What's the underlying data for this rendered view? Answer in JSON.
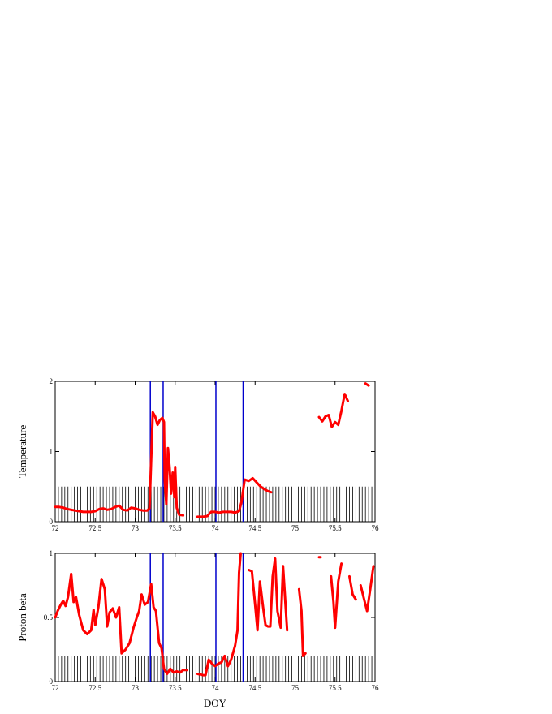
{
  "chart_data": [
    {
      "type": "line",
      "ylabel": "Temperature",
      "xlabel": "",
      "xlim": [
        72,
        76
      ],
      "ylim": [
        0,
        2
      ],
      "xticks": [
        "72",
        "72.5",
        "73",
        "73.5",
        "74",
        "74.5",
        "75",
        "75.5",
        "76"
      ],
      "yticks": [
        "0",
        "1",
        "2"
      ],
      "grid": false,
      "line_color": "#ff0000",
      "marker_color": "#0000cc",
      "vertical_markers": [
        73.19,
        73.35,
        74.01,
        74.35
      ],
      "hatch": {
        "y_top": 0.5,
        "x_start": 72,
        "x_end": 76,
        "spacing": 0.04
      },
      "segments": [
        [
          [
            72.0,
            0.21
          ],
          [
            72.05,
            0.21
          ],
          [
            72.1,
            0.2
          ],
          [
            72.15,
            0.18
          ],
          [
            72.2,
            0.17
          ],
          [
            72.25,
            0.16
          ],
          [
            72.3,
            0.15
          ],
          [
            72.35,
            0.14
          ],
          [
            72.4,
            0.14
          ],
          [
            72.45,
            0.14
          ],
          [
            72.5,
            0.15
          ],
          [
            72.55,
            0.18
          ],
          [
            72.6,
            0.19
          ],
          [
            72.65,
            0.17
          ],
          [
            72.7,
            0.18
          ],
          [
            72.75,
            0.21
          ],
          [
            72.8,
            0.23
          ],
          [
            72.85,
            0.17
          ],
          [
            72.9,
            0.16
          ],
          [
            72.95,
            0.2
          ],
          [
            73.0,
            0.19
          ],
          [
            73.05,
            0.17
          ],
          [
            73.1,
            0.16
          ],
          [
            73.15,
            0.16
          ],
          [
            73.18,
            0.19
          ],
          [
            73.22,
            1.56
          ],
          [
            73.25,
            1.5
          ],
          [
            73.28,
            1.38
          ],
          [
            73.31,
            1.45
          ],
          [
            73.34,
            1.48
          ],
          [
            73.36,
            1.42
          ],
          [
            73.37,
            0.6
          ],
          [
            73.39,
            0.25
          ],
          [
            73.41,
            1.05
          ],
          [
            73.43,
            0.78
          ],
          [
            73.45,
            0.4
          ],
          [
            73.47,
            0.7
          ],
          [
            73.49,
            0.35
          ],
          [
            73.5,
            0.78
          ],
          [
            73.52,
            0.2
          ],
          [
            73.55,
            0.1
          ],
          [
            73.6,
            0.09
          ]
        ],
        [
          [
            73.78,
            0.07
          ],
          [
            73.85,
            0.07
          ],
          [
            73.9,
            0.08
          ],
          [
            73.95,
            0.14
          ],
          [
            74.0,
            0.14
          ],
          [
            74.05,
            0.13
          ],
          [
            74.1,
            0.14
          ],
          [
            74.2,
            0.14
          ],
          [
            74.25,
            0.13
          ],
          [
            74.3,
            0.15
          ],
          [
            74.33,
            0.28
          ],
          [
            74.37,
            0.6
          ],
          [
            74.42,
            0.58
          ],
          [
            74.47,
            0.62
          ],
          [
            74.52,
            0.56
          ],
          [
            74.57,
            0.5
          ],
          [
            74.62,
            0.46
          ],
          [
            74.67,
            0.43
          ],
          [
            74.7,
            0.42
          ]
        ],
        [
          [
            75.3,
            1.49
          ],
          [
            75.34,
            1.43
          ],
          [
            75.38,
            1.5
          ],
          [
            75.42,
            1.52
          ],
          [
            75.46,
            1.35
          ],
          [
            75.5,
            1.42
          ],
          [
            75.54,
            1.38
          ],
          [
            75.58,
            1.58
          ],
          [
            75.62,
            1.82
          ],
          [
            75.66,
            1.72
          ]
        ],
        [
          [
            75.88,
            1.97
          ],
          [
            75.92,
            1.94
          ]
        ]
      ]
    },
    {
      "type": "line",
      "ylabel": "Proton beta",
      "xlabel": "DOY",
      "xlim": [
        72,
        76
      ],
      "ylim": [
        0,
        1
      ],
      "xticks": [
        "72",
        "72.5",
        "73",
        "73.5",
        "74",
        "74.5",
        "75",
        "75.5",
        "76"
      ],
      "yticks": [
        "0",
        "0.5",
        "1"
      ],
      "grid": false,
      "line_color": "#ff0000",
      "marker_color": "#0000cc",
      "vertical_markers": [
        73.19,
        73.35,
        74.01,
        74.35
      ],
      "hatch": {
        "y_top": 0.2,
        "x_start": 72,
        "x_end": 76,
        "spacing": 0.04
      },
      "segments": [
        [
          [
            72.0,
            0.5
          ],
          [
            72.03,
            0.55
          ],
          [
            72.07,
            0.6
          ],
          [
            72.1,
            0.63
          ],
          [
            72.13,
            0.59
          ],
          [
            72.16,
            0.66
          ],
          [
            72.2,
            0.84
          ],
          [
            72.23,
            0.62
          ],
          [
            72.26,
            0.66
          ],
          [
            72.3,
            0.52
          ],
          [
            72.35,
            0.4
          ],
          [
            72.4,
            0.37
          ],
          [
            72.45,
            0.4
          ],
          [
            72.48,
            0.56
          ],
          [
            72.5,
            0.44
          ],
          [
            72.54,
            0.58
          ],
          [
            72.58,
            0.8
          ],
          [
            72.62,
            0.72
          ],
          [
            72.65,
            0.43
          ],
          [
            72.68,
            0.54
          ],
          [
            72.72,
            0.57
          ],
          [
            72.76,
            0.5
          ],
          [
            72.8,
            0.58
          ],
          [
            72.83,
            0.22
          ],
          [
            72.88,
            0.25
          ],
          [
            72.93,
            0.3
          ],
          [
            72.98,
            0.42
          ],
          [
            73.02,
            0.5
          ],
          [
            73.05,
            0.55
          ],
          [
            73.08,
            0.68
          ],
          [
            73.12,
            0.6
          ],
          [
            73.16,
            0.62
          ],
          [
            73.2,
            0.76
          ],
          [
            73.23,
            0.58
          ],
          [
            73.26,
            0.55
          ],
          [
            73.3,
            0.3
          ],
          [
            73.33,
            0.26
          ],
          [
            73.36,
            0.1
          ],
          [
            73.4,
            0.06
          ],
          [
            73.44,
            0.1
          ],
          [
            73.48,
            0.07
          ],
          [
            73.52,
            0.08
          ],
          [
            73.56,
            0.07
          ],
          [
            73.6,
            0.09
          ],
          [
            73.65,
            0.09
          ]
        ],
        [
          [
            73.78,
            0.06
          ],
          [
            73.85,
            0.05
          ],
          [
            73.88,
            0.05
          ],
          [
            73.92,
            0.17
          ],
          [
            73.96,
            0.14
          ],
          [
            74.0,
            0.12
          ],
          [
            74.04,
            0.14
          ],
          [
            74.08,
            0.15
          ],
          [
            74.12,
            0.2
          ],
          [
            74.16,
            0.12
          ],
          [
            74.2,
            0.17
          ],
          [
            74.25,
            0.28
          ],
          [
            74.28,
            0.4
          ],
          [
            74.3,
            0.85
          ],
          [
            74.32,
            1.0
          ]
        ],
        [
          [
            74.42,
            0.87
          ],
          [
            74.46,
            0.86
          ],
          [
            74.5,
            0.6
          ],
          [
            74.53,
            0.4
          ],
          [
            74.56,
            0.78
          ],
          [
            74.6,
            0.58
          ],
          [
            74.63,
            0.44
          ],
          [
            74.66,
            0.43
          ],
          [
            74.69,
            0.43
          ],
          [
            74.72,
            0.82
          ],
          [
            74.75,
            0.96
          ],
          [
            74.78,
            0.55
          ],
          [
            74.82,
            0.42
          ],
          [
            74.85,
            0.9
          ],
          [
            74.88,
            0.6
          ],
          [
            74.9,
            0.4
          ]
        ],
        [
          [
            75.05,
            0.72
          ],
          [
            75.08,
            0.55
          ],
          [
            75.1,
            0.2
          ],
          [
            75.13,
            0.22
          ]
        ],
        [
          [
            75.3,
            0.97
          ],
          [
            75.32,
            0.97
          ]
        ],
        [
          [
            75.45,
            0.82
          ],
          [
            75.48,
            0.62
          ],
          [
            75.5,
            0.42
          ],
          [
            75.54,
            0.78
          ],
          [
            75.58,
            0.92
          ]
        ],
        [
          [
            75.68,
            0.82
          ],
          [
            75.72,
            0.68
          ],
          [
            75.76,
            0.64
          ]
        ],
        [
          [
            75.82,
            0.75
          ],
          [
            75.86,
            0.65
          ],
          [
            75.9,
            0.55
          ],
          [
            75.94,
            0.72
          ],
          [
            75.98,
            0.9
          ]
        ]
      ]
    }
  ]
}
